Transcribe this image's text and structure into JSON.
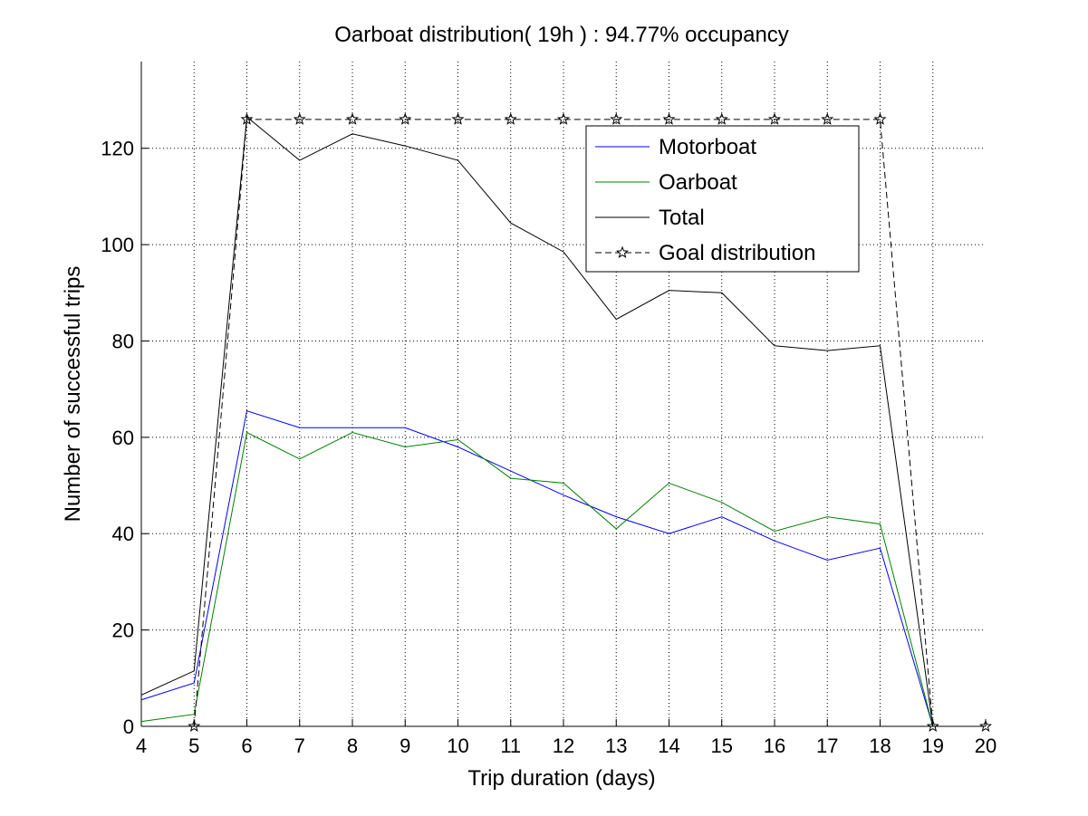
{
  "chart_data": {
    "type": "line",
    "title": "Oarboat distribution( 19h ) : 94.77% occupancy",
    "xlabel": "Trip duration (days)",
    "ylabel": "Number of successful trips",
    "xlim": [
      4,
      20
    ],
    "ylim": [
      0,
      138
    ],
    "xticks": [
      4,
      5,
      6,
      7,
      8,
      9,
      10,
      11,
      12,
      13,
      14,
      15,
      16,
      17,
      18,
      19,
      20
    ],
    "yticks": [
      0,
      20,
      40,
      60,
      80,
      100,
      120
    ],
    "grid": true,
    "legend_position": "top-right",
    "series": [
      {
        "name": "Motorboat",
        "color": "#0000ff",
        "dash": "solid",
        "marker": "none",
        "x": [
          4,
          5,
          6,
          7,
          8,
          9,
          10,
          11,
          12,
          13,
          14,
          15,
          16,
          17,
          18,
          19
        ],
        "y": [
          5.5,
          9,
          65.5,
          62,
          62,
          62,
          58,
          53,
          48,
          43.5,
          40,
          43.5,
          38.5,
          34.5,
          37,
          0
        ]
      },
      {
        "name": "Oarboat",
        "color": "#008000",
        "dash": "solid",
        "marker": "none",
        "x": [
          4,
          5,
          6,
          7,
          8,
          9,
          10,
          11,
          12,
          13,
          14,
          15,
          16,
          17,
          18,
          19
        ],
        "y": [
          1,
          2.5,
          61,
          55.5,
          61,
          58,
          59.5,
          51.5,
          50.5,
          41,
          50.5,
          46.5,
          40.5,
          43.5,
          42,
          0
        ]
      },
      {
        "name": "Total",
        "color": "#000000",
        "dash": "solid",
        "marker": "none",
        "x": [
          4,
          5,
          6,
          7,
          8,
          9,
          10,
          11,
          12,
          13,
          14,
          15,
          16,
          17,
          18,
          19
        ],
        "y": [
          6.5,
          11.5,
          126.5,
          117.5,
          123,
          120.5,
          117.5,
          104.5,
          98.5,
          84.5,
          90.5,
          90,
          79,
          78,
          79,
          0
        ]
      },
      {
        "name": "Goal distribution",
        "color": "#000000",
        "dash": "dashed",
        "marker": "star",
        "x": [
          5,
          6,
          7,
          8,
          9,
          10,
          11,
          12,
          13,
          14,
          15,
          16,
          17,
          18,
          19,
          20
        ],
        "y": [
          0,
          126,
          126,
          126,
          126,
          126,
          126,
          126,
          126,
          126,
          126,
          126,
          126,
          126,
          0,
          0
        ]
      }
    ]
  }
}
